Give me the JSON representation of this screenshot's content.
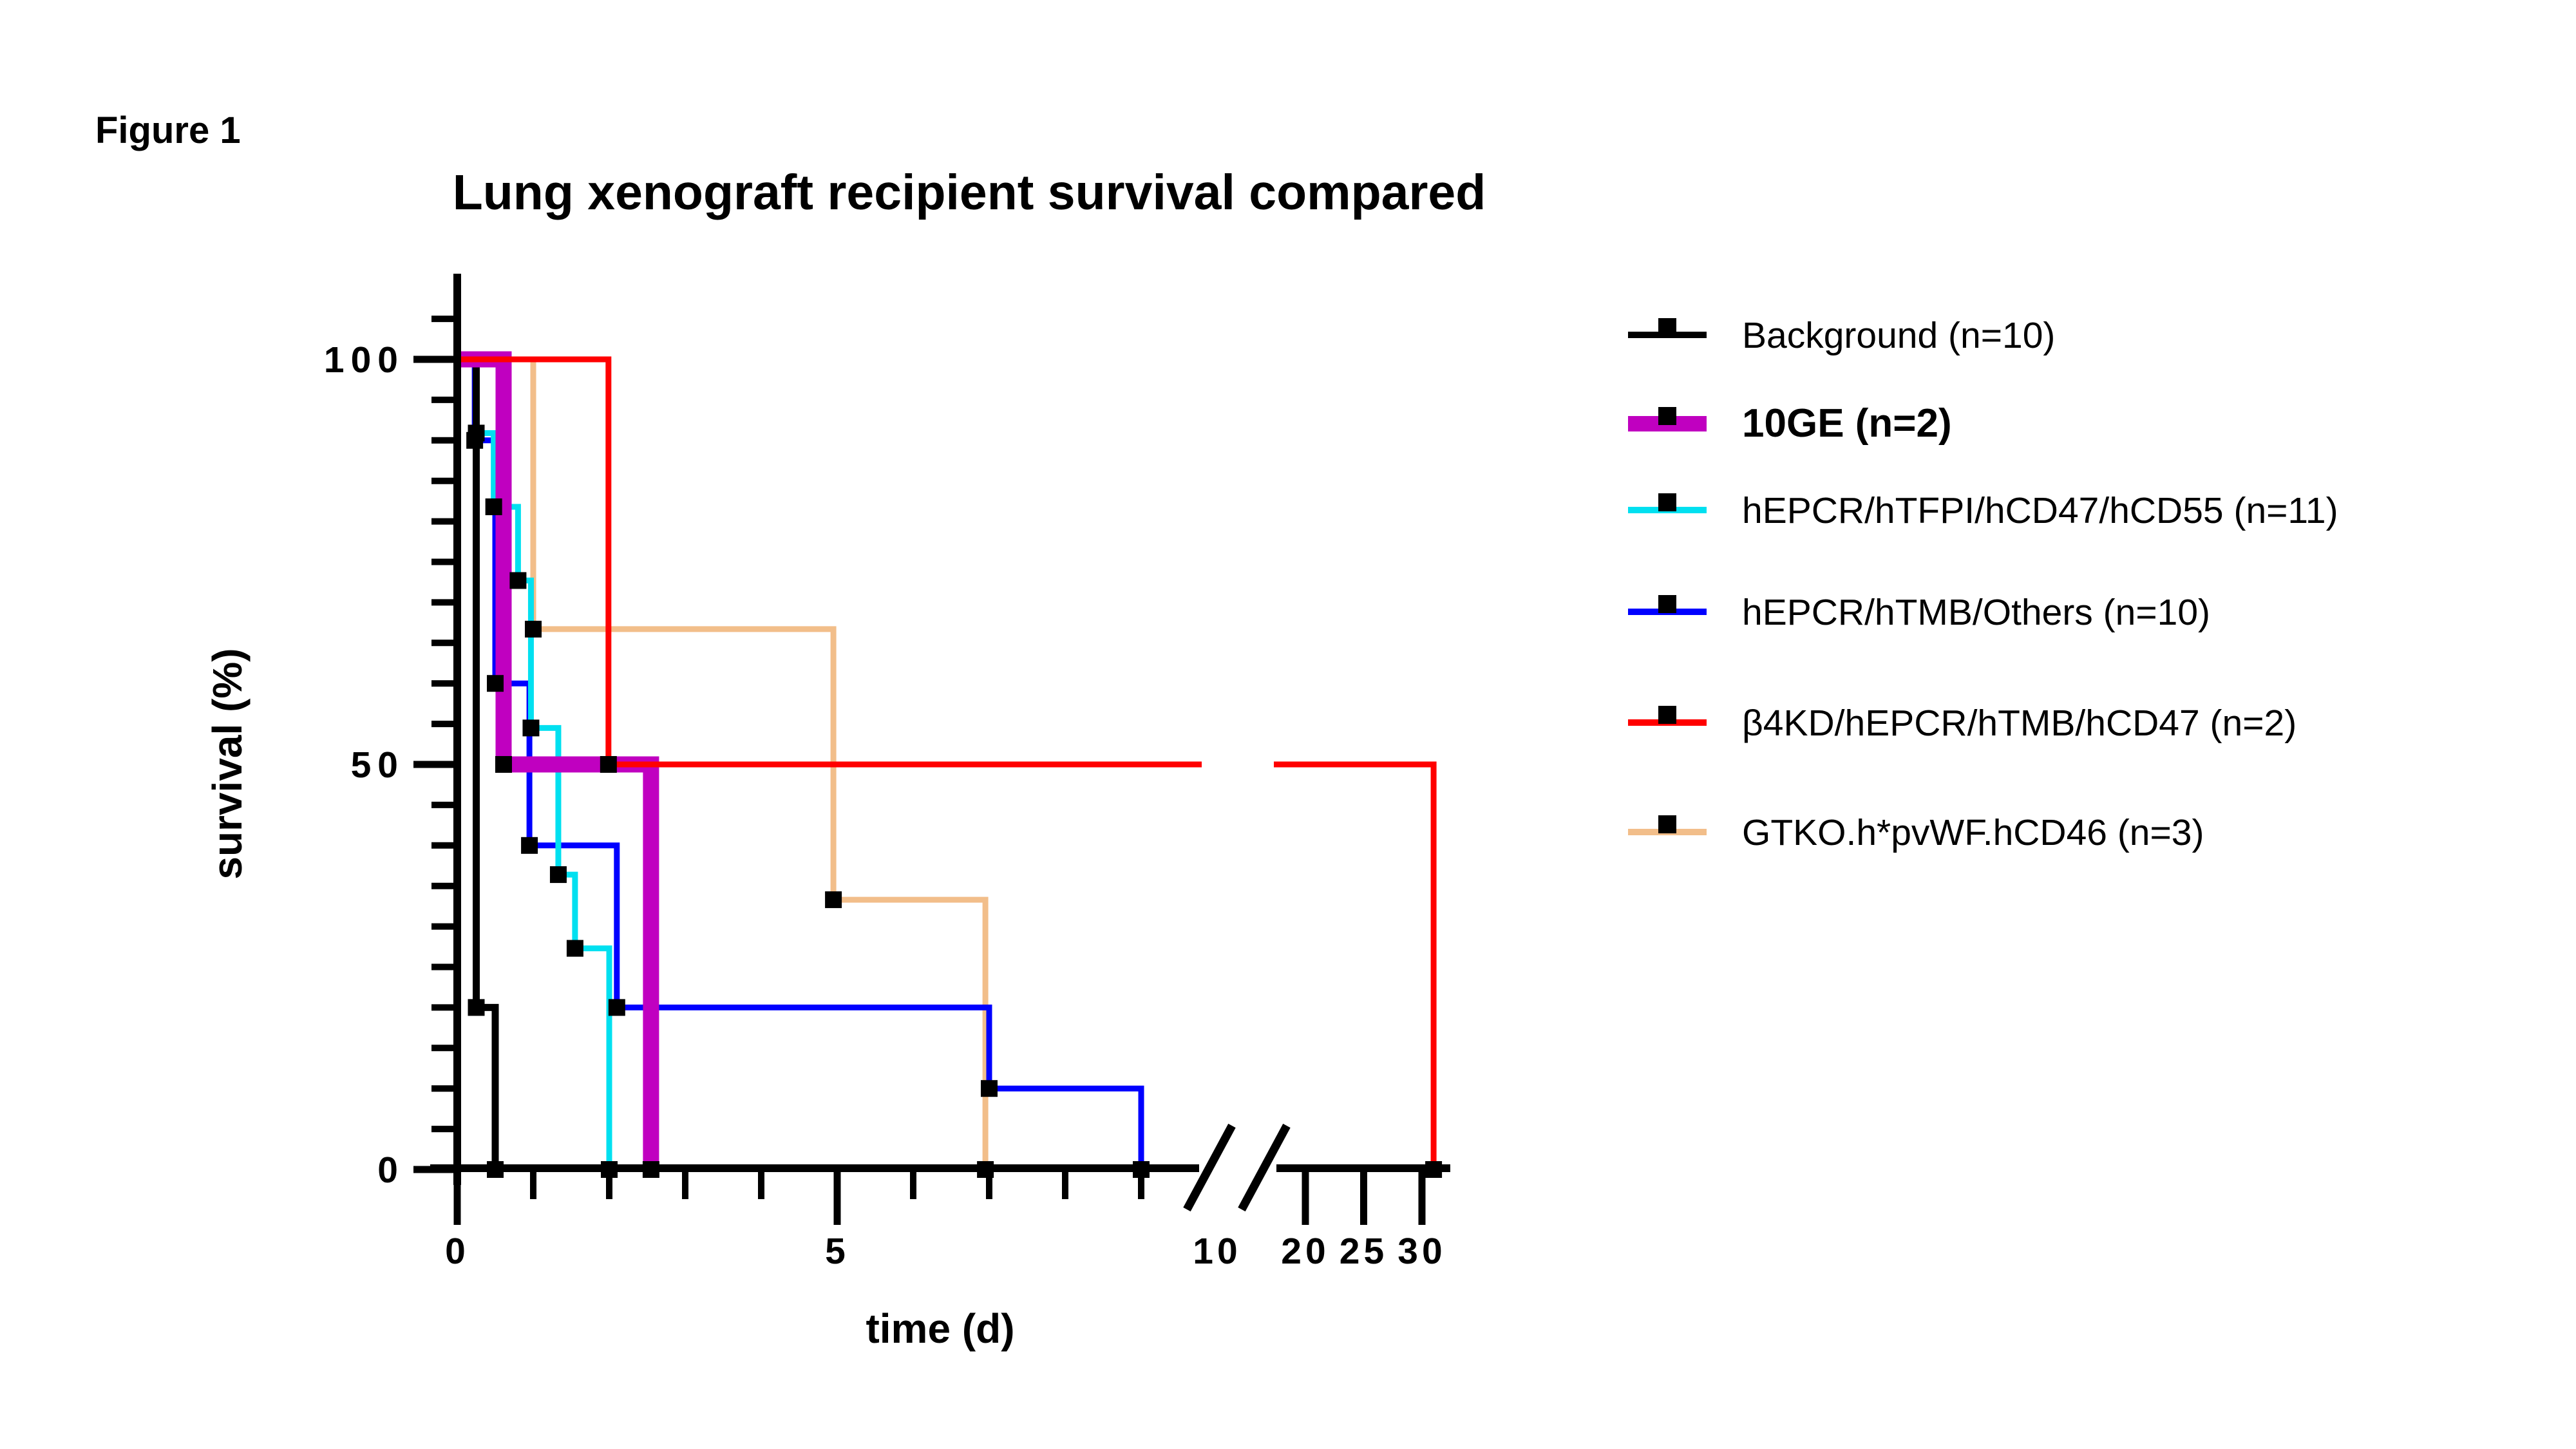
{
  "figure_label": "Figure 1",
  "chart_data": {
    "type": "line",
    "subtype": "kaplan-meier-step",
    "title": "Lung xenograft recipient survival compared",
    "xlabel": "time (d)",
    "ylabel": "survival (%)",
    "grid": false,
    "legend_position": "right",
    "x_axis": {
      "unit": "days",
      "break_between": [
        10,
        20
      ],
      "major_ticks": [
        {
          "value": 0,
          "label": "0",
          "tick": true
        },
        {
          "value": 5,
          "label": "5",
          "tick": true
        },
        {
          "value": 10,
          "label": "10",
          "tick": false
        },
        {
          "value": 20,
          "label": "20",
          "tick": true
        },
        {
          "value": 25,
          "label": "25",
          "tick": true
        },
        {
          "value": 30,
          "label": "30",
          "tick": true
        }
      ],
      "minor_ticks": [
        1,
        2,
        3,
        4,
        6,
        7,
        8,
        9
      ]
    },
    "y_axis": {
      "min": 0,
      "max": 105,
      "major_ticks": [
        {
          "value": 100,
          "label": "100"
        },
        {
          "value": 50,
          "label": "50"
        },
        {
          "value": 0,
          "label": "0"
        }
      ],
      "minor_step": 5
    },
    "series": [
      {
        "name": "background",
        "label": "Background (n=10)",
        "color": "#000000",
        "line_width": 11,
        "bold_label": false,
        "zindex": 4,
        "points": [
          [
            0,
            100
          ],
          [
            0.25,
            100
          ],
          [
            0.25,
            20
          ],
          [
            0.5,
            20
          ],
          [
            0.5,
            0
          ]
        ],
        "markers": [
          [
            0.25,
            20
          ],
          [
            0.5,
            0
          ]
        ]
      },
      {
        "name": "10ge",
        "label": "10GE (n=2)",
        "color": "#C000C0",
        "line_width": 25,
        "bold_label": true,
        "zindex": 5,
        "points": [
          [
            0,
            100
          ],
          [
            0.61,
            100
          ],
          [
            0.61,
            50
          ],
          [
            2.55,
            50
          ],
          [
            2.55,
            0
          ]
        ],
        "markers": [
          [
            0.61,
            50
          ],
          [
            2.55,
            0
          ]
        ]
      },
      {
        "name": "hepcr-htfpi-hcd47-hcd55",
        "label": "hEPCR/hTFPI/hCD47/hCD55 (n=11)",
        "color": "#00E0F0",
        "line_width": 9,
        "bold_label": false,
        "zindex": 3,
        "points": [
          [
            0,
            100
          ],
          [
            0.25,
            100
          ],
          [
            0.25,
            90.9
          ],
          [
            0.48,
            90.9
          ],
          [
            0.48,
            81.8
          ],
          [
            0.8,
            81.8
          ],
          [
            0.8,
            72.7
          ],
          [
            0.97,
            72.7
          ],
          [
            0.97,
            54.5
          ],
          [
            1.33,
            54.5
          ],
          [
            1.33,
            36.4
          ],
          [
            1.55,
            36.4
          ],
          [
            1.55,
            27.3
          ],
          [
            2.0,
            27.3
          ],
          [
            2.0,
            0
          ]
        ],
        "markers": [
          [
            0.25,
            90.9
          ],
          [
            0.48,
            81.8
          ],
          [
            0.8,
            72.7
          ],
          [
            0.97,
            54.5
          ],
          [
            1.33,
            36.4
          ],
          [
            1.55,
            27.3
          ],
          [
            2.0,
            0
          ]
        ]
      },
      {
        "name": "hepcr-htmb-others",
        "label": "hEPCR/hTMB/Others (n=10)",
        "color": "#0000FF",
        "line_width": 9,
        "bold_label": false,
        "zindex": 2,
        "points": [
          [
            0,
            100
          ],
          [
            0.23,
            100
          ],
          [
            0.23,
            90
          ],
          [
            0.5,
            90
          ],
          [
            0.5,
            60
          ],
          [
            0.95,
            60
          ],
          [
            0.95,
            40
          ],
          [
            2.1,
            40
          ],
          [
            2.1,
            20
          ],
          [
            7.0,
            20
          ],
          [
            7.0,
            10
          ],
          [
            9.0,
            10
          ],
          [
            9.0,
            0
          ]
        ],
        "markers": [
          [
            0.23,
            90
          ],
          [
            0.5,
            60
          ],
          [
            0.95,
            40
          ],
          [
            2.1,
            20
          ],
          [
            7.0,
            10
          ],
          [
            9.0,
            0
          ]
        ]
      },
      {
        "name": "b4kd-hepcr-htmb-hcd47",
        "label": "β4KD/hEPCR/hTMB/hCD47 (n=2)",
        "color": "#FF0000",
        "line_width": 9,
        "bold_label": false,
        "zindex": 6,
        "points": [
          [
            0,
            100
          ],
          [
            1.99,
            100
          ],
          [
            1.99,
            50
          ],
          [
            31,
            50
          ],
          [
            31,
            0
          ]
        ],
        "markers": [
          [
            1.99,
            50
          ],
          [
            31,
            0
          ]
        ]
      },
      {
        "name": "gtko-hpvwf-hcd46",
        "label": "GTKO.h*pvWF.hCD46 (n=3)",
        "color": "#F2BE8A",
        "line_width": 9,
        "bold_label": false,
        "zindex": 1,
        "points": [
          [
            0,
            100
          ],
          [
            1.0,
            100
          ],
          [
            1.0,
            66.7
          ],
          [
            4.95,
            66.7
          ],
          [
            4.95,
            33.3
          ],
          [
            6.95,
            33.3
          ],
          [
            6.95,
            0
          ]
        ],
        "markers": [
          [
            1.0,
            66.7
          ],
          [
            4.95,
            33.3
          ],
          [
            6.95,
            0
          ]
        ]
      }
    ],
    "marker": {
      "shape": "square",
      "color": "#000000",
      "size": 26
    }
  }
}
